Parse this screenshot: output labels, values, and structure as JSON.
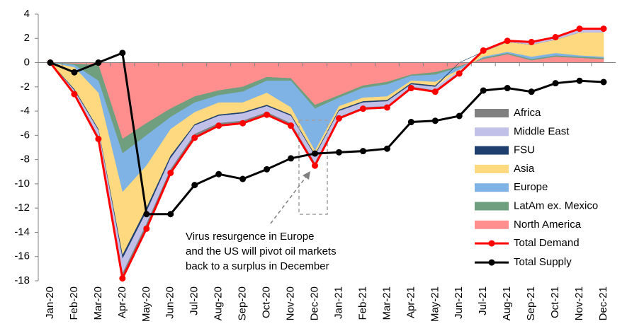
{
  "chart_data": {
    "type": "stacked-area-line",
    "categories": [
      "Jan-20",
      "Feb-20",
      "Mar-20",
      "Apr-20",
      "May-20",
      "Jun-20",
      "Jul-20",
      "Aug-20",
      "Sep-20",
      "Oct-20",
      "Nov-20",
      "Dec-20",
      "Jan-21",
      "Feb-21",
      "Mar-21",
      "Apr-21",
      "May-21",
      "Jun-21",
      "Jul-21",
      "Aug-21",
      "Sep-21",
      "Oct-21",
      "Nov-21",
      "Dec-21"
    ],
    "series": [
      {
        "name": "North America",
        "kind": "area",
        "color": "#ff8f8f",
        "values": [
          0,
          -0.1,
          -0.2,
          -6.3,
          -5.0,
          -3.8,
          -2.8,
          -2.3,
          -2.0,
          -1.2,
          -1.3,
          -3.5,
          -2.7,
          -1.9,
          -1.6,
          -1.0,
          -0.8,
          -0.3,
          0.3,
          0.7,
          0.2,
          0.5,
          0.4,
          0.3
        ]
      },
      {
        "name": "LatAm ex. Mexico",
        "kind": "area",
        "color": "#6f9f7f",
        "values": [
          0,
          -0.1,
          -1.3,
          -1.2,
          -1.0,
          -0.7,
          -0.5,
          -0.4,
          -0.4,
          -0.3,
          -0.2,
          -0.3,
          -0.2,
          -0.2,
          -0.2,
          -0.1,
          -0.2,
          -0.1,
          0.1,
          0.1,
          0.1,
          0.1,
          0.1,
          0.1
        ]
      },
      {
        "name": "Europe",
        "kind": "area",
        "color": "#7fb2e5",
        "values": [
          0,
          -0.2,
          -1.0,
          -3.2,
          -2.5,
          -1.0,
          -0.8,
          -0.6,
          -0.9,
          -1.0,
          -2.2,
          -3.5,
          -0.7,
          -0.8,
          -1.0,
          -0.4,
          -0.6,
          -0.2,
          0.1,
          0.1,
          0.2,
          0.2,
          0.1,
          0.1
        ]
      },
      {
        "name": "Asia",
        "kind": "area",
        "color": "#ffd97f",
        "values": [
          0,
          -1.8,
          -3.0,
          -5.2,
          -3.5,
          -2.2,
          -1.0,
          -1.0,
          -0.8,
          -1.0,
          -0.6,
          -0.3,
          -0.3,
          -0.3,
          -0.3,
          -0.2,
          -0.3,
          -0.1,
          0.4,
          0.8,
          1.0,
          1.1,
          1.9,
          2.0
        ]
      },
      {
        "name": "FSU",
        "kind": "area",
        "color": "#1f3f6f",
        "values": [
          0,
          -0.1,
          -0.1,
          -0.3,
          -0.3,
          -0.2,
          -0.1,
          -0.1,
          -0.1,
          -0.1,
          -0.1,
          -0.1,
          -0.1,
          -0.1,
          -0.1,
          -0.1,
          -0.1,
          0,
          0,
          0,
          0,
          0,
          0,
          0
        ]
      },
      {
        "name": "Middle East",
        "kind": "area",
        "color": "#c0c0e8",
        "values": [
          0,
          -0.2,
          -0.5,
          -1.2,
          -1.0,
          -0.9,
          -0.7,
          -0.6,
          -0.6,
          -0.5,
          -0.6,
          -0.6,
          -0.5,
          -0.4,
          -0.4,
          -0.2,
          -0.3,
          -0.1,
          0.1,
          0.1,
          0.2,
          0.2,
          0.3,
          0.3
        ]
      },
      {
        "name": "Africa",
        "kind": "area",
        "color": "#808080",
        "values": [
          0,
          -0.1,
          -0.2,
          -0.4,
          -0.4,
          -0.3,
          -0.3,
          -0.2,
          -0.2,
          -0.2,
          -0.2,
          -0.2,
          -0.1,
          -0.1,
          -0.1,
          -0.1,
          -0.1,
          -0.1,
          0,
          0,
          0,
          0,
          0,
          0
        ]
      },
      {
        "name": "Total Demand",
        "kind": "line",
        "color": "#ff0000",
        "values": [
          0,
          -2.6,
          -6.3,
          -17.8,
          -13.7,
          -9.1,
          -6.2,
          -5.2,
          -5.0,
          -4.3,
          -5.2,
          -8.5,
          -4.6,
          -3.8,
          -3.7,
          -2.1,
          -2.4,
          -0.9,
          1.0,
          1.8,
          1.7,
          2.1,
          2.8,
          2.8
        ]
      },
      {
        "name": "Total Supply",
        "kind": "line",
        "color": "#000000",
        "values": [
          0,
          -0.8,
          0,
          0.8,
          -12.5,
          -12.5,
          -10.1,
          -9.2,
          -9.6,
          -8.8,
          -7.9,
          -7.5,
          -7.4,
          -7.3,
          -7.1,
          -4.9,
          -4.8,
          -4.4,
          -2.3,
          -2.1,
          -2.4,
          -1.7,
          -1.5,
          -1.6
        ]
      }
    ],
    "ylim": [
      -18,
      4
    ],
    "yticks": [
      -18,
      -16,
      -14,
      -12,
      -10,
      -8,
      -6,
      -4,
      -2,
      0,
      2,
      4
    ],
    "annotation": [
      "Virus resurgence in Europe",
      "and the US will pivot oil markets",
      "back to a surplus in December"
    ],
    "legend": "right"
  }
}
